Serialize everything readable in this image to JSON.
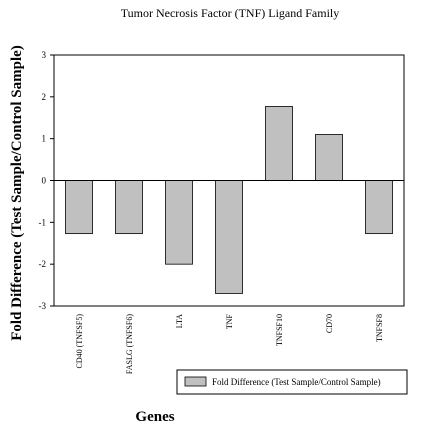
{
  "chart_data": {
    "type": "bar",
    "title": "Tumor Necrosis Factor (TNF) Ligand Family",
    "xlabel": "Genes",
    "ylabel": "Fold Difference (Test Sample/Control Sample)",
    "categories": [
      "CD40 (TNFSF5)",
      "FASLG (TNFSF6)",
      "LTA",
      "TNF",
      "TNFSF10",
      "CD70",
      "TNFSF8"
    ],
    "series": [
      {
        "name": "Fold Difference (Test Sample/Control Sample)",
        "values": [
          -1.27,
          -1.27,
          -2.0,
          -2.7,
          1.77,
          1.1,
          -1.27
        ]
      }
    ],
    "ylim": [
      -3,
      3
    ],
    "yticks": [
      "3",
      "2",
      "1",
      "0",
      "-1",
      "-2",
      "-3"
    ],
    "grid": false,
    "legend_position": "bottom-right",
    "colors": {
      "bar_fill": "#c0c0c0",
      "bar_stroke": "#000000"
    }
  }
}
